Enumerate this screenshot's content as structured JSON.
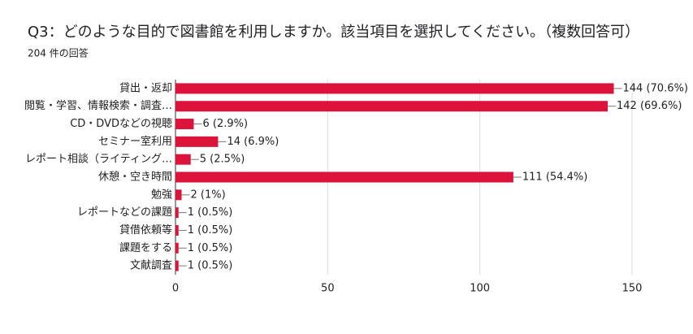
{
  "chart_data": {
    "type": "bar",
    "orientation": "horizontal",
    "title": "Q3：どのような目的で図書館を利用しますか。該当項目を選択してください。（複数回答可）",
    "subtitle": "204 件の回答",
    "categories": [
      "貸出・返却",
      "閲覧・学習、情報検索・調査…",
      "CD・DVDなどの視聴",
      "セミナー室利用",
      "レポート相談（ライティング…",
      "休憩・空き時間",
      "勉強",
      "レポートなどの課題",
      "貸借依頼等",
      "課題をする",
      "文献調査"
    ],
    "values": [
      144,
      142,
      6,
      14,
      5,
      111,
      2,
      1,
      1,
      1,
      1
    ],
    "value_labels": [
      "144 (70.6%)",
      "142 (69.6%)",
      "6 (2.9%)",
      "14 (6.9%)",
      "5 (2.5%)",
      "111 (54.4%)",
      "2 (1%)",
      "1 (0.5%)",
      "1 (0.5%)",
      "1 (0.5%)",
      "1 (0.5%)"
    ],
    "color": "#dc143c",
    "xlim": [
      0,
      150
    ],
    "xticks": [
      0,
      50,
      100,
      150
    ],
    "grid": true
  }
}
